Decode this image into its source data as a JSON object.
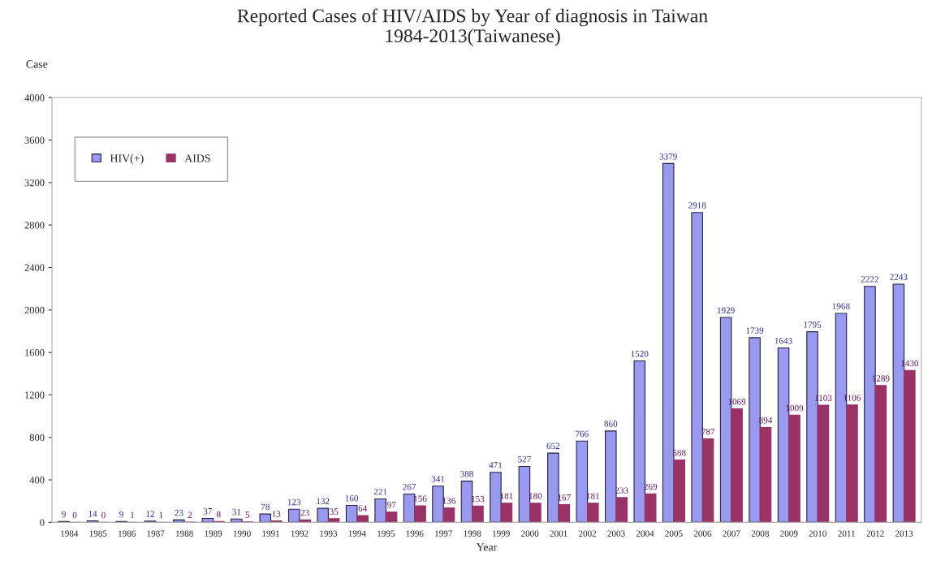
{
  "chart_data": {
    "type": "bar",
    "title": "Reported Cases of HIV/AIDS by Year of diagnosis in Taiwan\n1984-2013(Taiwanese)",
    "xlabel": "Year",
    "ylabel": "Case",
    "categories": [
      "1984",
      "1985",
      "1986",
      "1987",
      "1988",
      "1989",
      "1990",
      "1991",
      "1992",
      "1993",
      "1994",
      "1995",
      "1996",
      "1997",
      "1998",
      "1999",
      "2000",
      "2001",
      "2002",
      "2003",
      "2004",
      "2005",
      "2006",
      "2007",
      "2008",
      "2009",
      "2010",
      "2011",
      "2012",
      "2013"
    ],
    "series": [
      {
        "name": "HIV(+)",
        "color": "#9999ee",
        "values": [
          9,
          14,
          9,
          12,
          23,
          37,
          31,
          78,
          123,
          132,
          160,
          221,
          267,
          341,
          388,
          471,
          527,
          652,
          766,
          860,
          1520,
          3379,
          2918,
          1929,
          1739,
          1643,
          1795,
          1968,
          2222,
          2243
        ]
      },
      {
        "name": "AIDS",
        "color": "#993366",
        "values": [
          0,
          0,
          1,
          1,
          2,
          8,
          5,
          13,
          23,
          35,
          64,
          97,
          156,
          136,
          153,
          181,
          180,
          167,
          181,
          233,
          269,
          588,
          787,
          1069,
          894,
          1009,
          1103,
          1106,
          1289,
          1430
        ]
      }
    ],
    "ylim": [
      0,
      4000
    ],
    "yticks": [
      0,
      400,
      800,
      1200,
      1600,
      2000,
      2400,
      2800,
      3200,
      3600,
      4000
    ],
    "data_labels": true,
    "legend": "top left",
    "grid": false
  }
}
